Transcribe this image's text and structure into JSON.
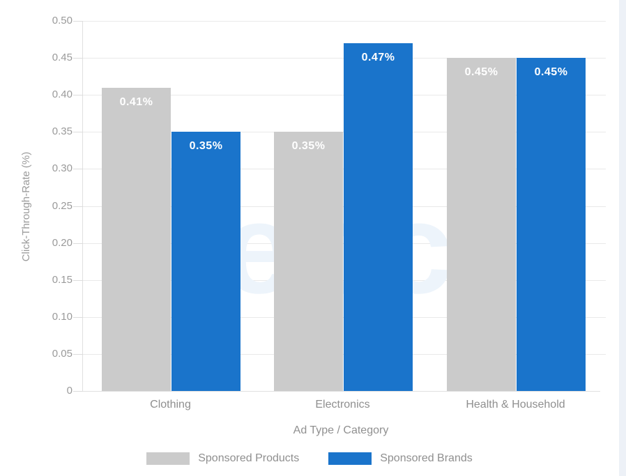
{
  "page": {
    "background": "#ffffff",
    "right_strip_color": "#edf1f7"
  },
  "watermark": {
    "text": "ebc",
    "color": "#edf4fb"
  },
  "chart_data": {
    "type": "bar",
    "title": "",
    "xlabel": "Ad Type / Category",
    "ylabel": "Click-Through-Rate (%)",
    "categories": [
      "Clothing",
      "Electronics",
      "Health & Household"
    ],
    "series": [
      {
        "name": "Sponsored Products",
        "color": "#cbcbcb",
        "values": [
          0.41,
          0.35,
          0.45
        ],
        "value_labels": [
          "0.41%",
          "0.35%",
          "0.45%"
        ]
      },
      {
        "name": "Sponsored Brands",
        "color": "#1a74cb",
        "values": [
          0.35,
          0.47,
          0.45
        ],
        "value_labels": [
          "0.35%",
          "0.47%",
          "0.45%"
        ]
      }
    ],
    "ylim": [
      0,
      0.5
    ],
    "yticks": [
      {
        "label": "0",
        "value": 0
      },
      {
        "label": "0.05",
        "value": 0.05
      },
      {
        "label": "0.10",
        "value": 0.1
      },
      {
        "label": "0.15",
        "value": 0.15
      },
      {
        "label": "0.20",
        "value": 0.2
      },
      {
        "label": "0.25",
        "value": 0.25
      },
      {
        "label": "0.30",
        "value": 0.3
      },
      {
        "label": "0.35",
        "value": 0.35
      },
      {
        "label": "0.40",
        "value": 0.4
      },
      {
        "label": "0.45",
        "value": 0.45
      },
      {
        "label": "0.50",
        "value": 0.5
      }
    ],
    "grid": true,
    "legend_position": "bottom",
    "bar_value_label_color": "#ffffff"
  }
}
